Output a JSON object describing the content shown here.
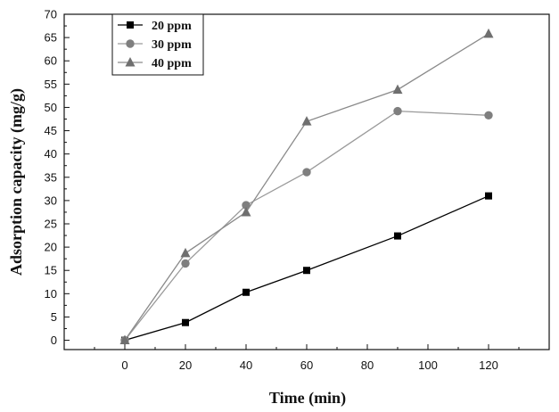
{
  "chart_data": {
    "type": "line",
    "title": "",
    "xlabel": "Time (min)",
    "ylabel": "Adsorption capacity (mg/g)",
    "x": [
      0,
      20,
      40,
      60,
      90,
      120
    ],
    "xlim": [
      -20,
      140
    ],
    "ylim": [
      -2,
      70
    ],
    "xticks": [
      0,
      20,
      40,
      60,
      80,
      100,
      120
    ],
    "yticks": [
      0,
      5,
      10,
      15,
      20,
      25,
      30,
      35,
      40,
      45,
      50,
      55,
      60,
      65,
      70
    ],
    "grid": false,
    "legend_position": "top-left",
    "series": [
      {
        "name": "20 ppm",
        "marker": "square",
        "color": "#000000",
        "line_color": "#000000",
        "values": [
          0,
          3.8,
          10.3,
          15.0,
          22.4,
          31.0
        ]
      },
      {
        "name": "30 ppm",
        "marker": "circle",
        "color": "#7f7f7f",
        "line_color": "#9a9a9a",
        "values": [
          0,
          16.5,
          29.0,
          36.1,
          49.2,
          48.3
        ]
      },
      {
        "name": "40 ppm",
        "marker": "triangle",
        "color": "#6f6f6f",
        "line_color": "#8a8a8a",
        "values": [
          0,
          18.7,
          27.5,
          47.0,
          53.8,
          65.8
        ]
      }
    ]
  }
}
